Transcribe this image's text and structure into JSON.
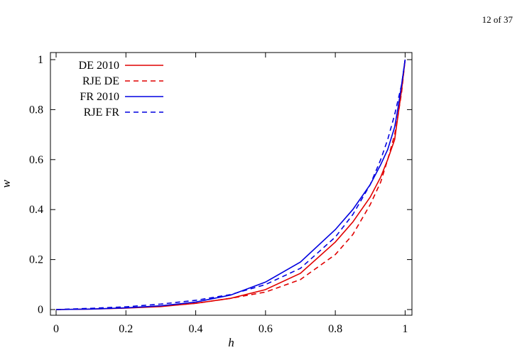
{
  "page": {
    "page_number": "12 of 37"
  },
  "chart_data": {
    "type": "line",
    "title": "",
    "xlabel": "h",
    "ylabel": "w",
    "xlim": [
      0,
      1
    ],
    "ylim": [
      0,
      1
    ],
    "xticks": [
      "0",
      "0.2",
      "0.4",
      "0.6",
      "0.8",
      "1"
    ],
    "yticks": [
      "0",
      "0.2",
      "0.4",
      "0.6",
      "0.8",
      "1"
    ],
    "grid": false,
    "legend_position": "top-left",
    "series": [
      {
        "name": "DE 2010",
        "color": "#e00000",
        "dash": "solid",
        "x": [
          0,
          0.1,
          0.2,
          0.3,
          0.4,
          0.5,
          0.6,
          0.7,
          0.8,
          0.85,
          0.9,
          0.93,
          0.95,
          0.97,
          0.98,
          0.99,
          1.0
        ],
        "y": [
          0,
          0.002,
          0.006,
          0.012,
          0.025,
          0.045,
          0.08,
          0.145,
          0.27,
          0.35,
          0.45,
          0.53,
          0.6,
          0.68,
          0.78,
          0.88,
          1.0
        ]
      },
      {
        "name": "RJE DE",
        "color": "#e00000",
        "dash": "dashed",
        "x": [
          0,
          0.1,
          0.2,
          0.3,
          0.4,
          0.5,
          0.6,
          0.7,
          0.8,
          0.85,
          0.9,
          0.93,
          0.95,
          0.97,
          0.98,
          0.99,
          1.0
        ],
        "y": [
          0,
          0.003,
          0.007,
          0.013,
          0.025,
          0.045,
          0.07,
          0.12,
          0.22,
          0.3,
          0.42,
          0.51,
          0.6,
          0.7,
          0.78,
          0.87,
          1.0
        ]
      },
      {
        "name": "FR 2010",
        "color": "#0000e0",
        "dash": "solid",
        "x": [
          0,
          0.1,
          0.2,
          0.3,
          0.4,
          0.5,
          0.6,
          0.7,
          0.8,
          0.85,
          0.9,
          0.93,
          0.95,
          0.97,
          0.98,
          0.99,
          1.0
        ],
        "y": [
          0,
          0.002,
          0.007,
          0.015,
          0.03,
          0.058,
          0.11,
          0.19,
          0.32,
          0.4,
          0.5,
          0.58,
          0.64,
          0.73,
          0.81,
          0.9,
          1.0
        ]
      },
      {
        "name": "RJE FR",
        "color": "#0000e0",
        "dash": "dashed",
        "x": [
          0,
          0.1,
          0.2,
          0.3,
          0.4,
          0.5,
          0.6,
          0.7,
          0.8,
          0.85,
          0.9,
          0.93,
          0.95,
          0.97,
          0.98,
          0.99,
          1.0
        ],
        "y": [
          0,
          0.005,
          0.011,
          0.022,
          0.037,
          0.06,
          0.1,
          0.165,
          0.29,
          0.38,
          0.5,
          0.6,
          0.68,
          0.78,
          0.84,
          0.9,
          1.0
        ]
      }
    ]
  }
}
